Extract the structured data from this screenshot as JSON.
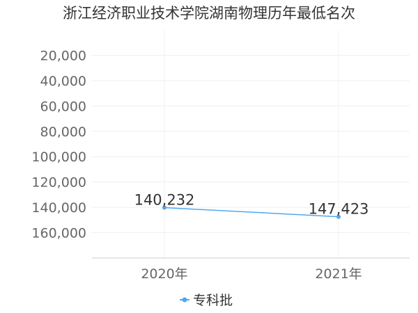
{
  "chart_data": {
    "type": "line",
    "title": "浙江经济职业技术学院湖南物理历年最低名次",
    "categories": [
      "2020年",
      "2021年"
    ],
    "series": [
      {
        "name": "专科批",
        "values": [
          140232,
          147423
        ],
        "labels": [
          "140,232",
          "147,423"
        ],
        "color": "#4fa8f0"
      }
    ],
    "ylim": [
      0,
      180000
    ],
    "y_reversed": true,
    "y_ticks": [
      20000,
      40000,
      60000,
      80000,
      100000,
      120000,
      140000,
      160000
    ],
    "y_tick_labels": [
      "20,000",
      "40,000",
      "60,000",
      "80,000",
      "100,000",
      "120,000",
      "140,000",
      "160,000"
    ],
    "grid": true,
    "legend": "bottom"
  }
}
